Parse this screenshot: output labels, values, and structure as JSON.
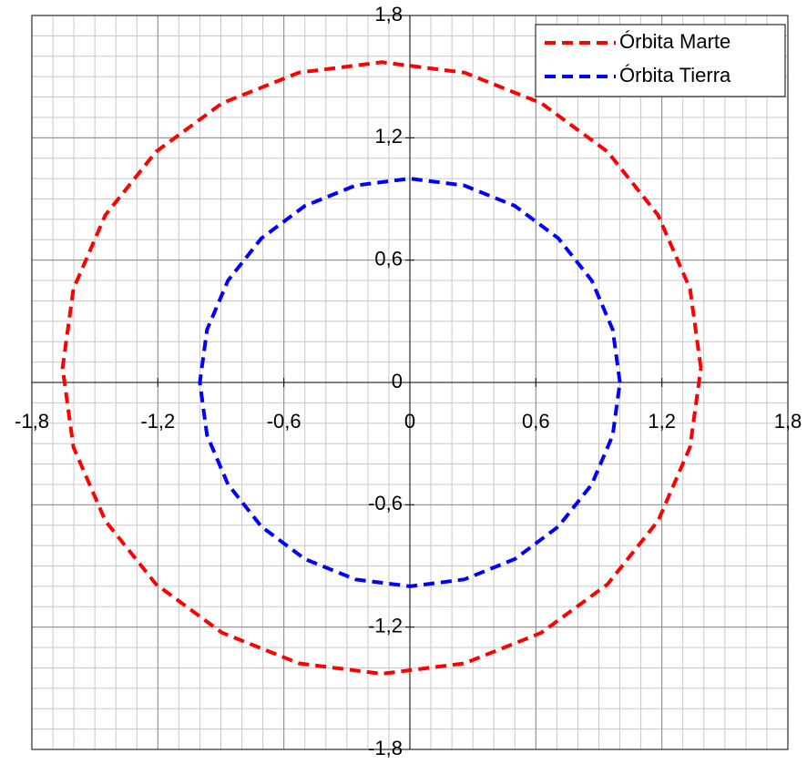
{
  "chart_data": {
    "type": "line",
    "xlim": [
      -1.8,
      1.8
    ],
    "ylim": [
      -1.8,
      1.8
    ],
    "xticks": [
      {
        "value": -1.8,
        "label": "-1,8"
      },
      {
        "value": -1.2,
        "label": "-1,2"
      },
      {
        "value": -0.6,
        "label": "-0,6"
      },
      0,
      {
        "value": 0.6,
        "label": "0,6"
      },
      {
        "value": 1.2,
        "label": "1,2"
      },
      {
        "value": 1.8,
        "label": "1,8"
      }
    ],
    "yticks": [
      {
        "value": -1.8,
        "label": "-1,8"
      },
      {
        "value": -1.2,
        "label": "-1,2"
      },
      {
        "value": -0.6,
        "label": "-0,6"
      },
      0,
      {
        "value": 0.6,
        "label": "0,6"
      },
      {
        "value": 1.2,
        "label": "1,2"
      },
      {
        "value": 1.8,
        "label": "1,8"
      }
    ],
    "grid": true,
    "minor_grid": 0.1,
    "legend": "upper right",
    "series": [
      {
        "name": "Órbita Marte",
        "color": "#ff0000",
        "x": [
          1.386,
          1.334,
          1.182,
          0.941,
          0.626,
          0.26,
          -0.134,
          -0.528,
          -0.894,
          -1.209,
          -1.45,
          -1.602,
          -1.654,
          -1.602,
          -1.45,
          -1.209,
          -0.894,
          -0.528,
          -0.134,
          0.26,
          0.626,
          0.941,
          1.182,
          1.334,
          1.386
        ],
        "values": [
          0.071,
          0.459,
          0.821,
          1.132,
          1.37,
          1.52,
          1.571,
          1.52,
          1.37,
          1.132,
          0.821,
          0.459,
          0.071,
          -0.317,
          -0.679,
          -0.99,
          -1.228,
          -1.378,
          -1.429,
          -1.378,
          -1.228,
          -0.99,
          -0.679,
          -0.317,
          0.071
        ]
      },
      {
        "name": "Órbita Tierra",
        "color": "#0000ff",
        "x": [
          1,
          0.966,
          0.866,
          0.707,
          0.5,
          0.259,
          0,
          -0.259,
          -0.5,
          -0.707,
          -0.866,
          -0.966,
          -1,
          -0.966,
          -0.866,
          -0.707,
          -0.5,
          -0.259,
          0,
          0.259,
          0.5,
          0.707,
          0.866,
          0.966,
          1
        ],
        "values": [
          0,
          0.259,
          0.5,
          0.707,
          0.866,
          0.966,
          1,
          0.966,
          0.866,
          0.707,
          0.5,
          0.259,
          0,
          -0.259,
          -0.5,
          -0.707,
          -0.866,
          -0.966,
          -1,
          -0.966,
          -0.866,
          -0.707,
          -0.5,
          -0.259,
          0
        ]
      }
    ]
  }
}
